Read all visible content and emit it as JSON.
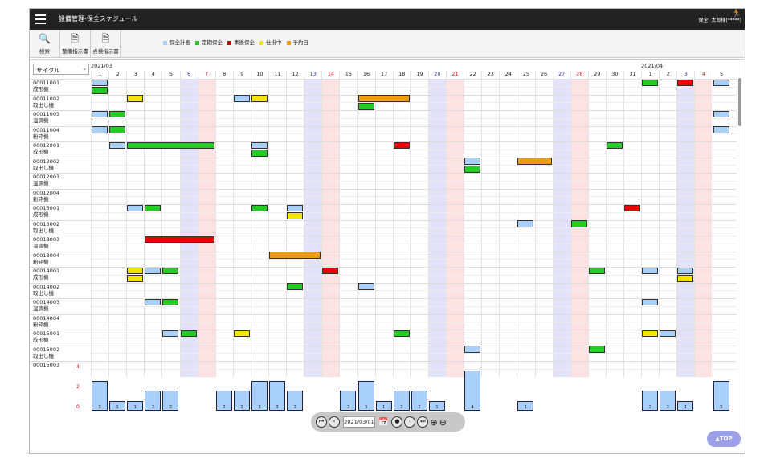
{
  "header": {
    "title": "設備管理-保全スケジュール",
    "user_role": "保全",
    "user_name": "太郎様(*****)"
  },
  "toolbar": {
    "search": "検索",
    "maint_order": "整備指示書",
    "inspect_order": "点検指示書"
  },
  "legend": [
    {
      "label": "保全計画",
      "color": "#a8d0fa"
    },
    {
      "label": "定期保全",
      "color": "#22cc22"
    },
    {
      "label": "事後保全",
      "color": "#cc0000"
    },
    {
      "label": "仕掛中",
      "color": "#f2e600"
    },
    {
      "label": "予約日",
      "color": "#ef9a15"
    }
  ],
  "cycle_select": "サイクル",
  "months": [
    "2021/03",
    "2021/04"
  ],
  "days": [
    "1",
    "2",
    "3",
    "4",
    "5",
    "6",
    "7",
    "8",
    "9",
    "10",
    "11",
    "12",
    "13",
    "14",
    "15",
    "16",
    "17",
    "18",
    "19",
    "20",
    "21",
    "22",
    "23",
    "24",
    "25",
    "26",
    "27",
    "28",
    "29",
    "30",
    "31",
    "1",
    "2",
    "3",
    "4",
    "5"
  ],
  "day_types": [
    "",
    "",
    "",
    "",
    "",
    "sat",
    "sun",
    "",
    "",
    "",
    "",
    "",
    "sat",
    "sun",
    "",
    "",
    "",
    "",
    "",
    "sat",
    "sun",
    "",
    "",
    "",
    "",
    "",
    "sat",
    "sun",
    "",
    "",
    "",
    "",
    "",
    "sat",
    "sun",
    ""
  ],
  "rows": [
    {
      "code": "00011001",
      "name": "成形機"
    },
    {
      "code": "00011002",
      "name": "取出し機"
    },
    {
      "code": "00011003",
      "name": "温調機"
    },
    {
      "code": "00011004",
      "name": "粉砕機"
    },
    {
      "code": "00012001",
      "name": "成形機"
    },
    {
      "code": "00012002",
      "name": "取出し機"
    },
    {
      "code": "00012003",
      "name": "温調機"
    },
    {
      "code": "00012004",
      "name": "粉砕機"
    },
    {
      "code": "00013001",
      "name": "成形機"
    },
    {
      "code": "00013002",
      "name": "取出し機"
    },
    {
      "code": "00013003",
      "name": "温調機"
    },
    {
      "code": "00013004",
      "name": "粉砕機"
    },
    {
      "code": "00014001",
      "name": "成形機"
    },
    {
      "code": "00014002",
      "name": "取出し機"
    },
    {
      "code": "00014003",
      "name": "温調機"
    },
    {
      "code": "00014004",
      "name": "粉砕機"
    },
    {
      "code": "00015001",
      "name": "成形機"
    },
    {
      "code": "00015002",
      "name": "取出し機"
    },
    {
      "code": "00015003",
      "name": ""
    }
  ],
  "events": [
    {
      "row": 0,
      "start": 1,
      "len": 1,
      "sub": 0,
      "type": "plan"
    },
    {
      "row": 0,
      "start": 1,
      "len": 1,
      "sub": 1,
      "type": "regular"
    },
    {
      "row": 0,
      "start": 32,
      "len": 1,
      "sub": 0,
      "type": "regular"
    },
    {
      "row": 0,
      "start": 34,
      "len": 1,
      "sub": 0,
      "type": "post"
    },
    {
      "row": 0,
      "start": 36,
      "len": 1,
      "sub": 0,
      "type": "plan"
    },
    {
      "row": 1,
      "start": 3,
      "len": 1,
      "sub": 0,
      "type": "wip"
    },
    {
      "row": 1,
      "start": 9,
      "len": 1,
      "sub": 0,
      "type": "plan"
    },
    {
      "row": 1,
      "start": 10,
      "len": 1,
      "sub": 0,
      "type": "wip"
    },
    {
      "row": 1,
      "start": 16,
      "len": 3,
      "sub": 0,
      "type": "reserve"
    },
    {
      "row": 1,
      "start": 16,
      "len": 1,
      "sub": 1,
      "type": "regular"
    },
    {
      "row": 2,
      "start": 1,
      "len": 1,
      "sub": 0,
      "type": "plan"
    },
    {
      "row": 2,
      "start": 2,
      "len": 1,
      "sub": 0,
      "type": "regular"
    },
    {
      "row": 2,
      "start": 36,
      "len": 1,
      "sub": 0,
      "type": "plan"
    },
    {
      "row": 3,
      "start": 1,
      "len": 1,
      "sub": 0,
      "type": "plan"
    },
    {
      "row": 3,
      "start": 2,
      "len": 1,
      "sub": 0,
      "type": "regular"
    },
    {
      "row": 3,
      "start": 36,
      "len": 1,
      "sub": 0,
      "type": "plan"
    },
    {
      "row": 4,
      "start": 2,
      "len": 1,
      "sub": 0,
      "type": "plan"
    },
    {
      "row": 4,
      "start": 3,
      "len": 5,
      "sub": 0,
      "type": "regular"
    },
    {
      "row": 4,
      "start": 10,
      "len": 1,
      "sub": 0,
      "type": "plan"
    },
    {
      "row": 4,
      "start": 10,
      "len": 1,
      "sub": 1,
      "type": "regular"
    },
    {
      "row": 4,
      "start": 18,
      "len": 1,
      "sub": 0,
      "type": "post"
    },
    {
      "row": 4,
      "start": 30,
      "len": 1,
      "sub": 0,
      "type": "regular"
    },
    {
      "row": 5,
      "start": 22,
      "len": 1,
      "sub": 0,
      "type": "plan"
    },
    {
      "row": 5,
      "start": 22,
      "len": 1,
      "sub": 1,
      "type": "regular"
    },
    {
      "row": 5,
      "start": 25,
      "len": 2,
      "sub": 0,
      "type": "reserve"
    },
    {
      "row": 8,
      "start": 3,
      "len": 1,
      "sub": 0,
      "type": "plan"
    },
    {
      "row": 8,
      "start": 4,
      "len": 1,
      "sub": 0,
      "type": "regular"
    },
    {
      "row": 8,
      "start": 10,
      "len": 1,
      "sub": 0,
      "type": "regular"
    },
    {
      "row": 8,
      "start": 12,
      "len": 1,
      "sub": 0,
      "type": "plan"
    },
    {
      "row": 8,
      "start": 12,
      "len": 1,
      "sub": 1,
      "type": "wip"
    },
    {
      "row": 8,
      "start": 31,
      "len": 1,
      "sub": 0,
      "type": "post"
    },
    {
      "row": 9,
      "start": 25,
      "len": 1,
      "sub": 0,
      "type": "plan"
    },
    {
      "row": 9,
      "start": 28,
      "len": 1,
      "sub": 0,
      "type": "regular"
    },
    {
      "row": 10,
      "start": 4,
      "len": 4,
      "sub": 0,
      "type": "post"
    },
    {
      "row": 11,
      "start": 11,
      "len": 3,
      "sub": 0,
      "type": "reserve"
    },
    {
      "row": 12,
      "start": 3,
      "len": 1,
      "sub": 0,
      "type": "wip"
    },
    {
      "row": 12,
      "start": 3,
      "len": 1,
      "sub": 1,
      "type": "wip"
    },
    {
      "row": 12,
      "start": 4,
      "len": 1,
      "sub": 0,
      "type": "plan"
    },
    {
      "row": 12,
      "start": 5,
      "len": 1,
      "sub": 0,
      "type": "regular"
    },
    {
      "row": 12,
      "start": 14,
      "len": 1,
      "sub": 0,
      "type": "post"
    },
    {
      "row": 12,
      "start": 29,
      "len": 1,
      "sub": 0,
      "type": "regular"
    },
    {
      "row": 12,
      "start": 32,
      "len": 1,
      "sub": 0,
      "type": "plan"
    },
    {
      "row": 12,
      "start": 34,
      "len": 1,
      "sub": 0,
      "type": "plan"
    },
    {
      "row": 12,
      "start": 34,
      "len": 1,
      "sub": 1,
      "type": "wip"
    },
    {
      "row": 13,
      "start": 12,
      "len": 1,
      "sub": 0,
      "type": "regular"
    },
    {
      "row": 13,
      "start": 16,
      "len": 1,
      "sub": 0,
      "type": "plan"
    },
    {
      "row": 14,
      "start": 4,
      "len": 1,
      "sub": 0,
      "type": "plan"
    },
    {
      "row": 14,
      "start": 5,
      "len": 1,
      "sub": 0,
      "type": "regular"
    },
    {
      "row": 14,
      "start": 32,
      "len": 1,
      "sub": 0,
      "type": "plan"
    },
    {
      "row": 16,
      "start": 5,
      "len": 1,
      "sub": 0,
      "type": "plan"
    },
    {
      "row": 16,
      "start": 6,
      "len": 1,
      "sub": 0,
      "type": "regular"
    },
    {
      "row": 16,
      "start": 9,
      "len": 1,
      "sub": 0,
      "type": "wip"
    },
    {
      "row": 16,
      "start": 18,
      "len": 1,
      "sub": 0,
      "type": "regular"
    },
    {
      "row": 16,
      "start": 32,
      "len": 1,
      "sub": 0,
      "type": "wip"
    },
    {
      "row": 16,
      "start": 33,
      "len": 1,
      "sub": 0,
      "type": "plan"
    },
    {
      "row": 17,
      "start": 22,
      "len": 1,
      "sub": 0,
      "type": "plan"
    },
    {
      "row": 17,
      "start": 29,
      "len": 1,
      "sub": 0,
      "type": "regular"
    }
  ],
  "type_colors": {
    "plan": "#a8d0fa",
    "regular": "#22cc22",
    "post": "#ee0000",
    "wip": "#f2e600",
    "reserve": "#ef9a15"
  },
  "histogram": {
    "ticks": [
      "4",
      "2",
      "0"
    ],
    "max": 4,
    "values": [
      3,
      1,
      1,
      2,
      2,
      0,
      0,
      2,
      2,
      3,
      3,
      2,
      0,
      0,
      2,
      3,
      1,
      2,
      2,
      1,
      0,
      4,
      0,
      0,
      1,
      0,
      0,
      0,
      0,
      0,
      0,
      2,
      2,
      1,
      0,
      3
    ]
  },
  "nav": {
    "date": "2021/03/01"
  },
  "top_button": "▲TOP"
}
